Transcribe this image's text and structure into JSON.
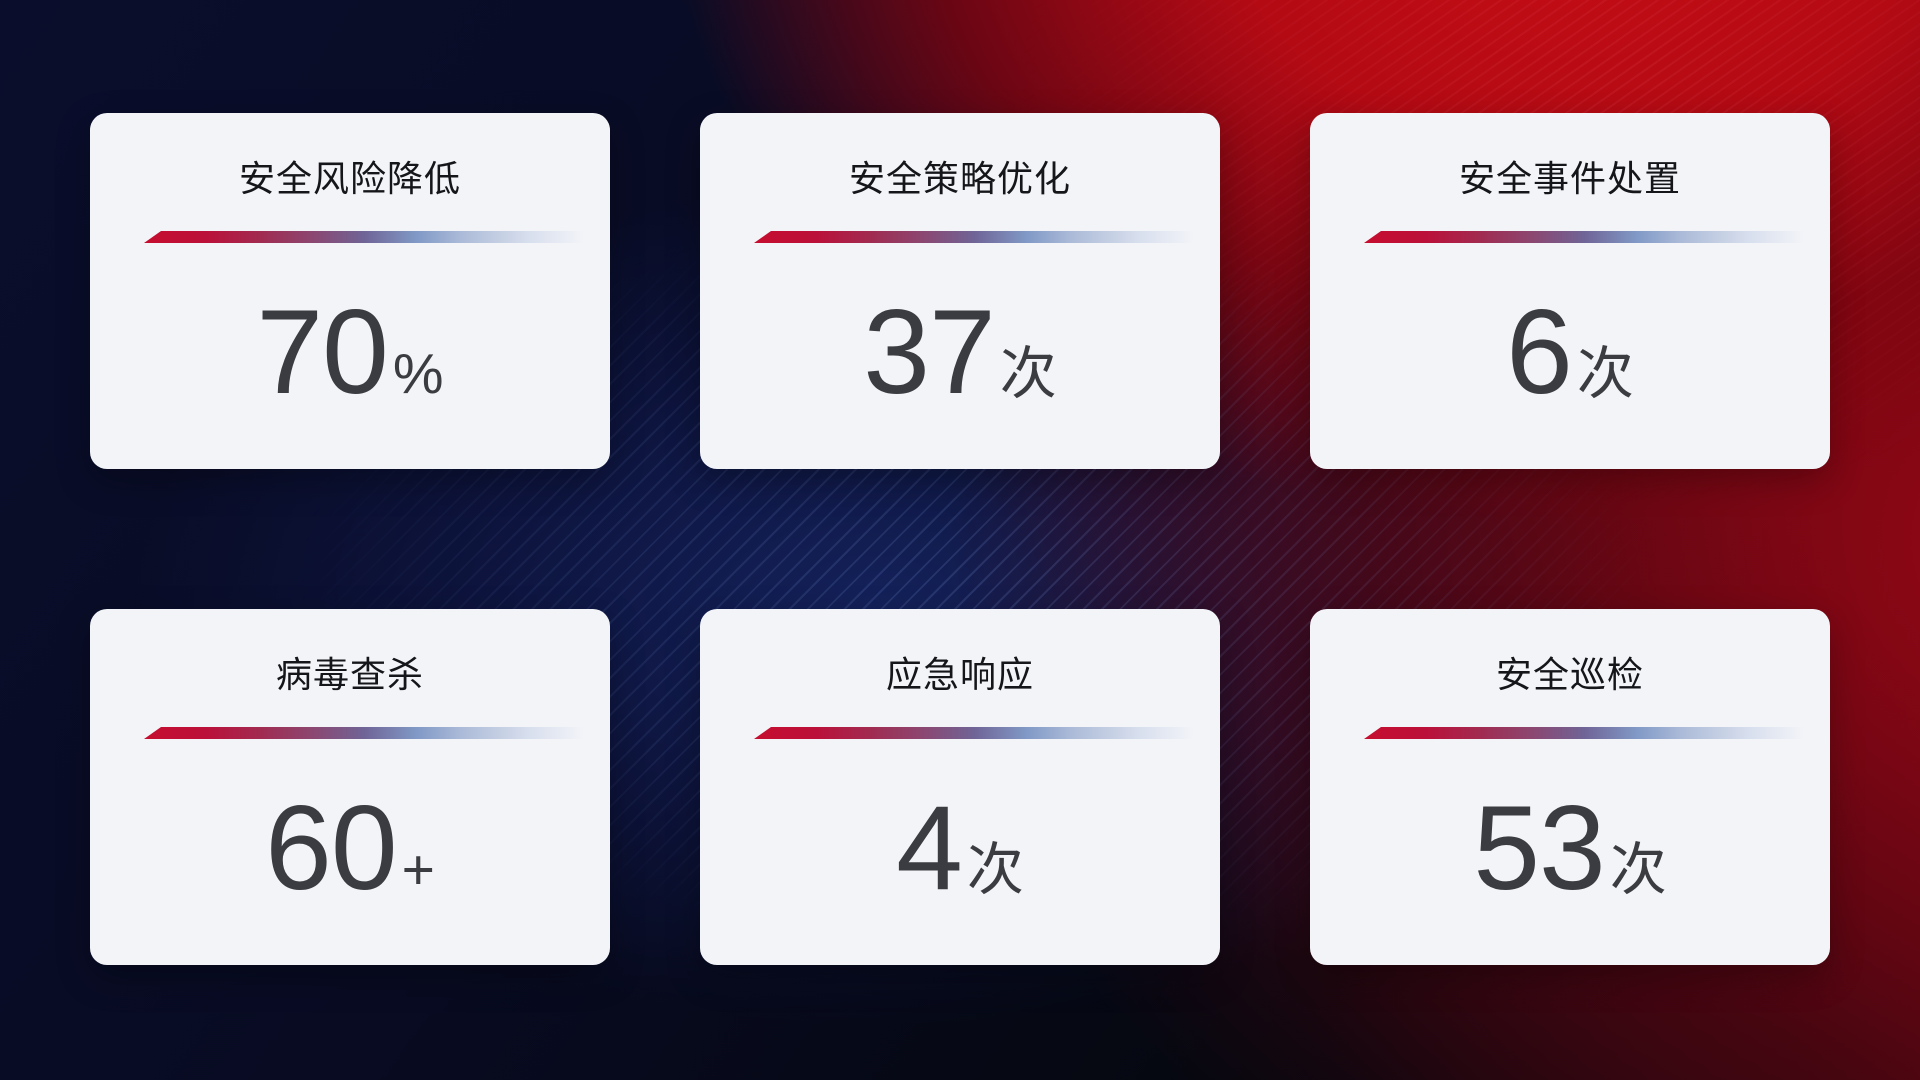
{
  "cards": [
    {
      "title": "安全风险降低",
      "value": "70",
      "unit": "%"
    },
    {
      "title": "安全策略优化",
      "value": "37",
      "unit": "次"
    },
    {
      "title": "安全事件处置",
      "value": "6",
      "unit": "次"
    },
    {
      "title": "病毒查杀",
      "value": "60",
      "unit": "+"
    },
    {
      "title": "应急响应",
      "value": "4",
      "unit": "次"
    },
    {
      "title": "安全巡检",
      "value": "53",
      "unit": "次"
    }
  ],
  "colors": {
    "card_background": "#f3f4f8",
    "title_text": "#15161a",
    "value_text": "#3b3c41",
    "divider_red": "#c60d2f",
    "divider_purple": "#6f6496",
    "divider_steel_blue": "#b7c4de",
    "background_navy": "#0a0e2c",
    "background_red": "#b30a14",
    "background_dark_maroon": "#2a0509"
  }
}
